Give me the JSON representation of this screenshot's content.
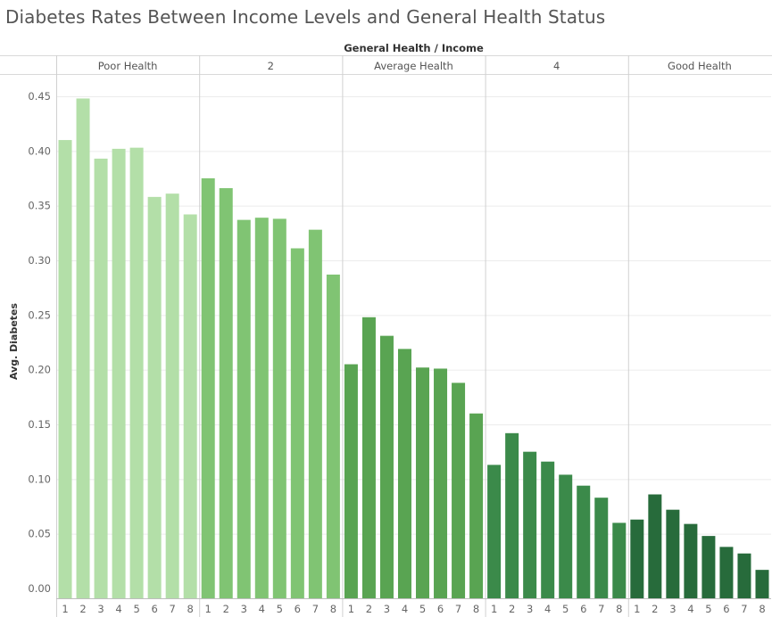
{
  "title": "Diabetes Rates Between Income Levels and General Health Status",
  "chart_data": {
    "type": "bar",
    "title": "Diabetes Rates Between Income Levels and General Health Status",
    "header": "General Health  /  Income",
    "ylabel": "Avg. Diabetes",
    "ylim": [
      0,
      0.47
    ],
    "yticks": [
      "0.00",
      "0.05",
      "0.10",
      "0.15",
      "0.20",
      "0.25",
      "0.30",
      "0.35",
      "0.40",
      "0.45"
    ],
    "categories": [
      "1",
      "2",
      "3",
      "4",
      "5",
      "6",
      "7",
      "8"
    ],
    "grid": true,
    "legend": "none",
    "series": [
      {
        "name": "Poor Health",
        "color": "#b3dfa8",
        "values": [
          0.41,
          0.448,
          0.393,
          0.402,
          0.403,
          0.358,
          0.361,
          0.342
        ]
      },
      {
        "name": "2",
        "color": "#80c473",
        "values": [
          0.375,
          0.366,
          0.337,
          0.339,
          0.338,
          0.311,
          0.328,
          0.287
        ]
      },
      {
        "name": "Average Health",
        "color": "#59a452",
        "values": [
          0.205,
          0.248,
          0.231,
          0.219,
          0.202,
          0.201,
          0.188,
          0.16
        ]
      },
      {
        "name": "4",
        "color": "#3b8a4a",
        "values": [
          0.113,
          0.142,
          0.125,
          0.116,
          0.104,
          0.094,
          0.083,
          0.06
        ]
      },
      {
        "name": "Good Health",
        "color": "#276b3b",
        "values": [
          0.063,
          0.086,
          0.072,
          0.059,
          0.048,
          0.038,
          0.032,
          0.017
        ]
      }
    ]
  }
}
